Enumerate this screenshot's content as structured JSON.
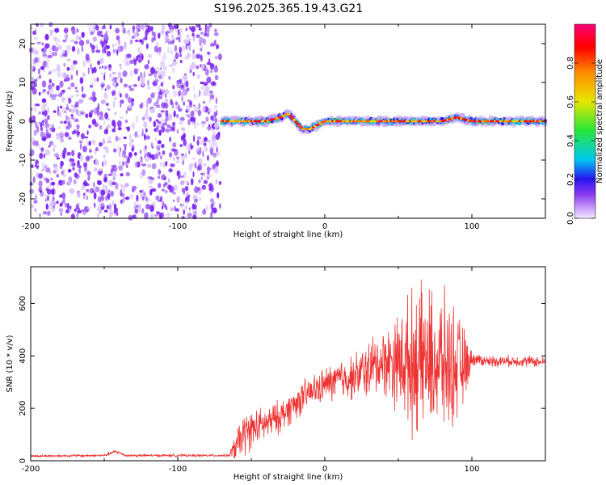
{
  "title": "S196.2025.365.19.43.G21",
  "colors": {
    "snr_line": "#ee3333",
    "scatter": "#7a2ff0",
    "frame": "#000000"
  },
  "chart_data": [
    {
      "type": "heatmap",
      "name": "spectrogram",
      "xlabel": "Height of straight line (km)",
      "ylabel": "Frequency (Hz)",
      "xlim": [
        -200,
        150
      ],
      "ylim": [
        -25,
        25
      ],
      "xticks": [
        -200,
        -100,
        0,
        100
      ],
      "yticks": [
        20,
        10,
        0,
        -10,
        -20
      ],
      "noise_region_x": [
        -200,
        -70
      ],
      "signal_track": {
        "x": [
          -70,
          -60,
          -50,
          -40,
          -30,
          -25,
          -20,
          -15,
          -10,
          -5,
          0,
          10,
          20,
          30,
          40,
          50,
          60,
          70,
          80,
          90,
          100,
          110,
          120,
          130,
          140,
          150
        ],
        "freq": [
          0,
          0,
          0,
          0,
          1,
          2,
          0,
          -2,
          -2,
          -1,
          0,
          0,
          0,
          0,
          0,
          0,
          0,
          0,
          0,
          1,
          0,
          0,
          0,
          0,
          0,
          0
        ]
      },
      "colorbar": {
        "label": "Normalized spectral amplitude",
        "range": [
          0,
          1
        ],
        "ticks": [
          0.0,
          0.2,
          0.4,
          0.6,
          0.8
        ]
      }
    },
    {
      "type": "line",
      "name": "snr",
      "xlabel": "Height of straight line (km)",
      "ylabel": "SNR (10 * v/v)",
      "xlim": [
        -200,
        150
      ],
      "ylim": [
        0,
        740
      ],
      "xticks": [
        -200,
        -100,
        0,
        100
      ],
      "yticks": [
        0,
        200,
        400,
        600
      ],
      "envelope": {
        "x": [
          -200,
          -150,
          -142,
          -135,
          -100,
          -65,
          -60,
          -55,
          -50,
          -40,
          -30,
          -20,
          -10,
          0,
          10,
          20,
          30,
          40,
          50,
          60,
          70,
          80,
          90,
          96,
          100,
          110,
          120,
          130,
          140,
          150
        ],
        "baseline": [
          18,
          20,
          35,
          20,
          20,
          20,
          60,
          100,
          120,
          140,
          170,
          220,
          260,
          290,
          310,
          320,
          350,
          380,
          380,
          380,
          380,
          370,
          360,
          360,
          390,
          380,
          380,
          380,
          380,
          375
        ],
        "spread": [
          5,
          5,
          8,
          5,
          5,
          5,
          60,
          80,
          70,
          60,
          60,
          60,
          60,
          60,
          80,
          80,
          110,
          120,
          180,
          260,
          260,
          260,
          200,
          120,
          25,
          20,
          20,
          20,
          20,
          20
        ]
      }
    }
  ]
}
